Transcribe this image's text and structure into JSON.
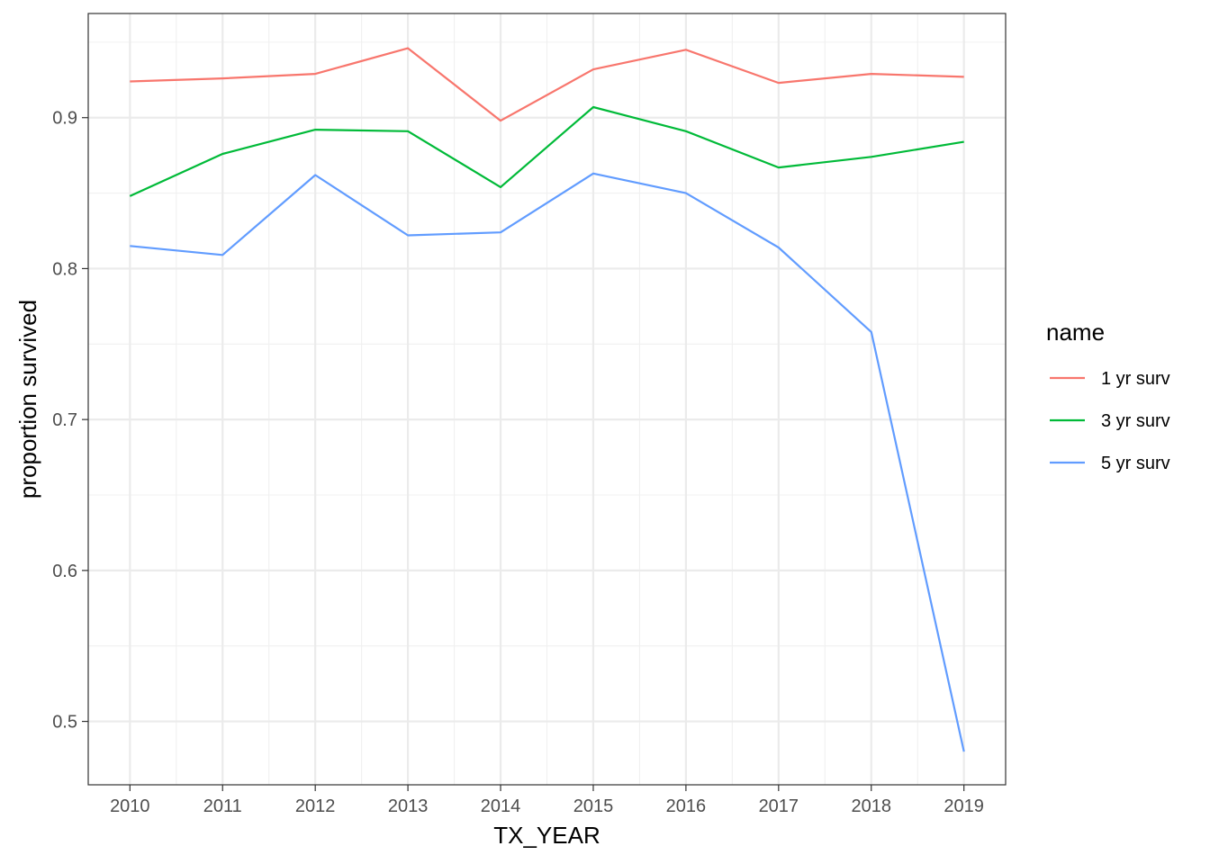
{
  "chart_data": {
    "type": "line",
    "xlabel": "TX_YEAR",
    "ylabel": "proportion survived",
    "x": [
      2010,
      2011,
      2012,
      2013,
      2014,
      2015,
      2016,
      2017,
      2018,
      2019
    ],
    "x_ticks": [
      "2010",
      "2011",
      "2012",
      "2013",
      "2014",
      "2015",
      "2016",
      "2017",
      "2018",
      "2019"
    ],
    "y_ticks": [
      "0.5",
      "0.6",
      "0.7",
      "0.8",
      "0.9"
    ],
    "xlim": [
      2009.55,
      2019.45
    ],
    "ylim": [
      0.458,
      0.969
    ],
    "grid": true,
    "legend": {
      "title": "name",
      "position": "right"
    },
    "series": [
      {
        "name": "1 yr surv",
        "color": "#F8766D",
        "values": [
          0.924,
          0.926,
          0.929,
          0.946,
          0.898,
          0.932,
          0.945,
          0.923,
          0.929,
          0.927
        ]
      },
      {
        "name": "3 yr surv",
        "color": "#00BA38",
        "values": [
          0.848,
          0.876,
          0.892,
          0.891,
          0.854,
          0.907,
          0.891,
          0.867,
          0.874,
          0.884
        ]
      },
      {
        "name": "5 yr surv",
        "color": "#619CFF",
        "values": [
          0.815,
          0.809,
          0.862,
          0.822,
          0.824,
          0.863,
          0.85,
          0.814,
          0.758,
          0.48
        ]
      }
    ]
  }
}
